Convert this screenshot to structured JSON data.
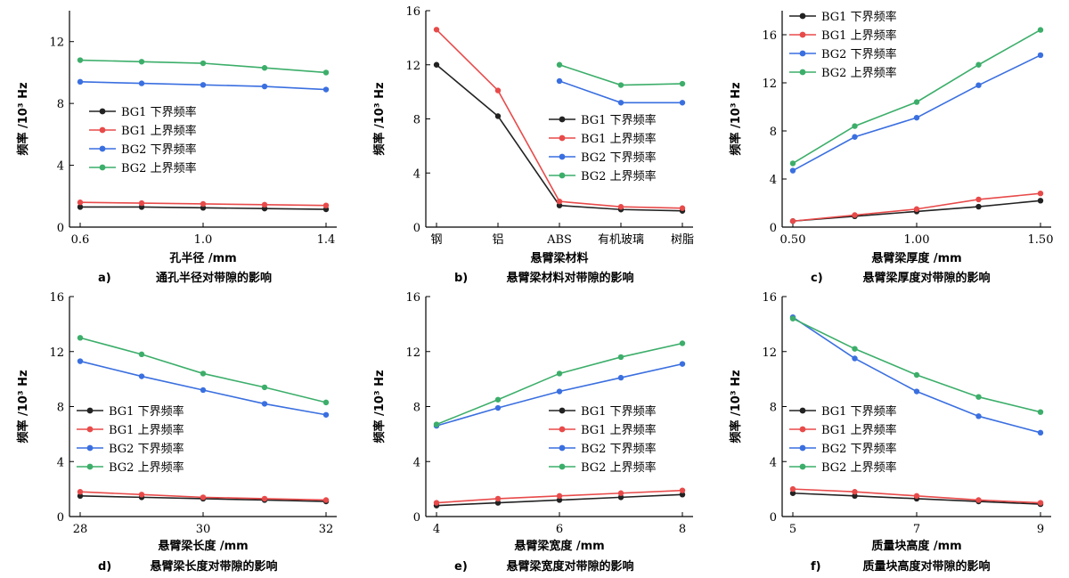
{
  "legend_labels": [
    "BG1 下界频率",
    "BG1 上界频率",
    "BG2 下界频率",
    "BG2 上界频率"
  ],
  "series_colors": [
    "#222222",
    "#e84a4a",
    "#3a6fe0",
    "#3cae6a"
  ],
  "chart_data": [
    {
      "type": "line",
      "caption_letter": "a)",
      "caption": "通孔半径对带隙的影响",
      "xlabel": "孔半径 /mm",
      "ylabel": "频率 /10³ Hz",
      "xlim": [
        0.6,
        1.4
      ],
      "ylim": [
        0,
        14
      ],
      "xticks": [
        0.6,
        1.0,
        1.4
      ],
      "xtick_labels": [
        "0.6",
        "1.0",
        "1.4"
      ],
      "yticks": [
        0,
        4,
        8,
        12
      ],
      "ytick_labels": [
        "0",
        "4",
        "8",
        "12"
      ],
      "x": [
        0.6,
        0.8,
        1.0,
        1.2,
        1.4
      ],
      "series": [
        {
          "name": "BG1 下界频率",
          "values": [
            1.3,
            1.3,
            1.25,
            1.2,
            1.15
          ]
        },
        {
          "name": "BG1 上界频率",
          "values": [
            1.6,
            1.55,
            1.5,
            1.45,
            1.4
          ]
        },
        {
          "name": "BG2 下界频率",
          "values": [
            9.4,
            9.3,
            9.2,
            9.1,
            8.9
          ]
        },
        {
          "name": "BG2 上界频率",
          "values": [
            10.8,
            10.7,
            10.6,
            10.3,
            10.0
          ]
        }
      ],
      "legend_position": "center-left"
    },
    {
      "type": "line",
      "caption_letter": "b)",
      "caption": "悬臂梁材料对带隙的影响",
      "xlabel": "悬臂梁材料",
      "ylabel": "频率 /10³ Hz",
      "xlim": [
        0,
        4
      ],
      "ylim": [
        0,
        16
      ],
      "xticks": [
        0,
        1,
        2,
        3,
        4
      ],
      "xtick_labels": [
        "钢",
        "铝",
        "ABS",
        "有机玻璃",
        "树脂"
      ],
      "yticks": [
        0,
        4,
        8,
        12,
        16
      ],
      "ytick_labels": [
        "0",
        "4",
        "8",
        "12",
        "16"
      ],
      "x": [
        0,
        1,
        2,
        3,
        4
      ],
      "series": [
        {
          "name": "BG1 下界频率",
          "values": [
            12.0,
            8.2,
            1.6,
            1.3,
            1.2
          ]
        },
        {
          "name": "BG1 上界频率",
          "values": [
            14.6,
            10.1,
            1.9,
            1.5,
            1.4
          ]
        },
        {
          "name": "BG2 下界频率",
          "values": [
            null,
            null,
            10.8,
            9.2,
            9.2
          ]
        },
        {
          "name": "BG2 上界频率",
          "values": [
            null,
            null,
            12.0,
            10.5,
            10.6
          ]
        }
      ],
      "legend_position": "lower-right"
    },
    {
      "type": "line",
      "caption_letter": "c)",
      "caption": "悬臂梁厚度对带隙的影响",
      "xlabel": "悬臂梁厚度 /mm",
      "ylabel": "频率 /10³ Hz",
      "xlim": [
        0.5,
        1.5
      ],
      "ylim": [
        0,
        18
      ],
      "xticks": [
        0.5,
        1.0,
        1.5
      ],
      "xtick_labels": [
        "0.50",
        "1.00",
        "1.50"
      ],
      "yticks": [
        0,
        4,
        8,
        12,
        16
      ],
      "ytick_labels": [
        "0",
        "4",
        "8",
        "12",
        "16"
      ],
      "x": [
        0.5,
        0.75,
        1.0,
        1.25,
        1.5
      ],
      "series": [
        {
          "name": "BG1 下界频率",
          "values": [
            0.5,
            0.9,
            1.3,
            1.7,
            2.2
          ]
        },
        {
          "name": "BG1 上界频率",
          "values": [
            0.5,
            1.0,
            1.5,
            2.3,
            2.8
          ]
        },
        {
          "name": "BG2 下界频率",
          "values": [
            4.7,
            7.5,
            9.1,
            11.8,
            14.3
          ]
        },
        {
          "name": "BG2 上界频率",
          "values": [
            5.3,
            8.4,
            10.4,
            13.5,
            16.4
          ]
        }
      ],
      "legend_position": "top-left"
    },
    {
      "type": "line",
      "caption_letter": "d)",
      "caption": "悬臂梁长度对带隙的影响",
      "xlabel": "悬臂梁长度 /mm",
      "ylabel": "频率 /10³ Hz",
      "xlim": [
        28,
        32
      ],
      "ylim": [
        0,
        16
      ],
      "xticks": [
        28,
        30,
        32
      ],
      "xtick_labels": [
        "28",
        "30",
        "32"
      ],
      "yticks": [
        0,
        4,
        8,
        12,
        16
      ],
      "ytick_labels": [
        "0",
        "4",
        "8",
        "12",
        "16"
      ],
      "x": [
        28,
        29,
        30,
        31,
        32
      ],
      "series": [
        {
          "name": "BG1 下界频率",
          "values": [
            1.5,
            1.4,
            1.3,
            1.2,
            1.1
          ]
        },
        {
          "name": "BG1 上界频率",
          "values": [
            1.8,
            1.6,
            1.4,
            1.3,
            1.2
          ]
        },
        {
          "name": "BG2 下界频率",
          "values": [
            11.3,
            10.2,
            9.2,
            8.2,
            7.4
          ]
        },
        {
          "name": "BG2 上界频率",
          "values": [
            13.0,
            11.8,
            10.4,
            9.4,
            8.3
          ]
        }
      ],
      "legend_position": "lower-left"
    },
    {
      "type": "line",
      "caption_letter": "e)",
      "caption": "悬臂梁宽度对带隙的影响",
      "xlabel": "悬臂梁宽度 /mm",
      "ylabel": "频率 /10³ Hz",
      "xlim": [
        4,
        8
      ],
      "ylim": [
        0,
        16
      ],
      "xticks": [
        4,
        6,
        8
      ],
      "xtick_labels": [
        "4",
        "6",
        "8"
      ],
      "yticks": [
        0,
        4,
        8,
        12,
        16
      ],
      "ytick_labels": [
        "0",
        "4",
        "8",
        "12",
        "16"
      ],
      "x": [
        4,
        5,
        6,
        7,
        8
      ],
      "series": [
        {
          "name": "BG1 下界频率",
          "values": [
            0.8,
            1.0,
            1.2,
            1.4,
            1.6
          ]
        },
        {
          "name": "BG1 上界频率",
          "values": [
            1.0,
            1.3,
            1.5,
            1.7,
            1.9
          ]
        },
        {
          "name": "BG2 下界频率",
          "values": [
            6.6,
            7.9,
            9.1,
            10.1,
            11.1
          ]
        },
        {
          "name": "BG2 上界频率",
          "values": [
            6.7,
            8.5,
            10.4,
            11.6,
            12.6
          ]
        }
      ],
      "legend_position": "lower-right"
    },
    {
      "type": "line",
      "caption_letter": "f)",
      "caption": "质量块高度对带隙的影响",
      "xlabel": "质量块高度 /mm",
      "ylabel": "频率 /10³ Hz",
      "xlim": [
        5,
        9
      ],
      "ylim": [
        0,
        16
      ],
      "xticks": [
        5,
        7,
        9
      ],
      "xtick_labels": [
        "5",
        "7",
        "9"
      ],
      "yticks": [
        0,
        4,
        8,
        12,
        16
      ],
      "ytick_labels": [
        "0",
        "4",
        "8",
        "12",
        "16"
      ],
      "x": [
        5,
        6,
        7,
        8,
        9
      ],
      "series": [
        {
          "name": "BG1 下界频率",
          "values": [
            1.7,
            1.5,
            1.3,
            1.1,
            0.9
          ]
        },
        {
          "name": "BG1 上界频率",
          "values": [
            2.0,
            1.8,
            1.5,
            1.2,
            1.0
          ]
        },
        {
          "name": "BG2 下界频率",
          "values": [
            14.5,
            11.5,
            9.1,
            7.3,
            6.1
          ]
        },
        {
          "name": "BG2 上界频率",
          "values": [
            14.4,
            12.2,
            10.3,
            8.7,
            7.6
          ]
        }
      ],
      "legend_position": "lower-left"
    }
  ]
}
